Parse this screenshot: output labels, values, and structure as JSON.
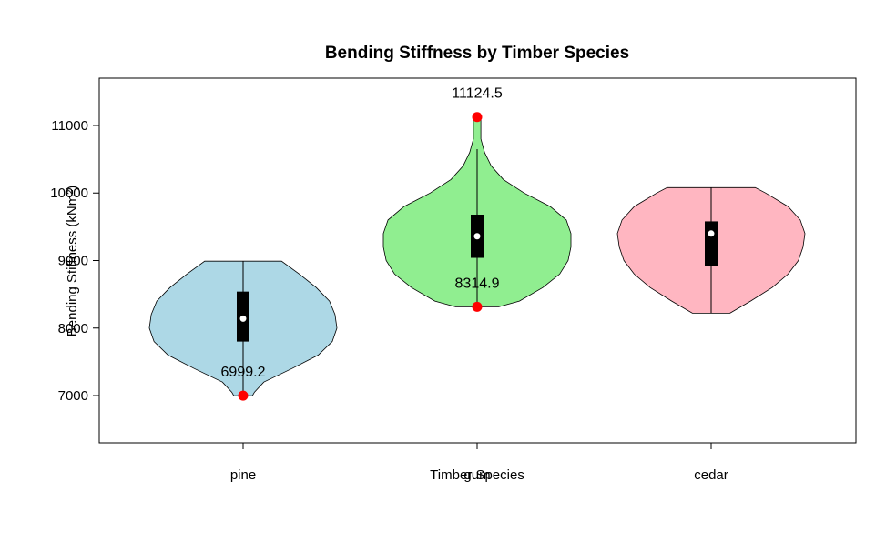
{
  "chart_data": {
    "type": "violin",
    "title": "Bending Stiffness by Timber Species",
    "xlabel": "Timber Species",
    "ylabel": "Bending Stiffness (kNm²)",
    "ylim": [
      6300,
      11700
    ],
    "yticks": [
      7000,
      8000,
      9000,
      10000,
      11000
    ],
    "categories": [
      "pine",
      "gum",
      "cedar"
    ],
    "colors": [
      "#add8e6",
      "#90ee90",
      "#ffb6c1"
    ],
    "min_marker_color": "#ff0000",
    "violins": [
      {
        "name": "pine",
        "min": 6999.2,
        "max": 8990,
        "q1": 7800,
        "median": 8140,
        "q3": 8540,
        "whisker_low": 7000,
        "whisker_high": 8990,
        "density_profile": [
          [
            6999.2,
            0.1
          ],
          [
            7050,
            0.12
          ],
          [
            7200,
            0.22
          ],
          [
            7400,
            0.52
          ],
          [
            7600,
            0.8
          ],
          [
            7800,
            0.95
          ],
          [
            8000,
            1.0
          ],
          [
            8200,
            0.98
          ],
          [
            8400,
            0.92
          ],
          [
            8600,
            0.78
          ],
          [
            8800,
            0.6
          ],
          [
            8990,
            0.41
          ]
        ],
        "labeled_points": [
          {
            "label": "6999.2",
            "value": 6999.2
          }
        ]
      },
      {
        "name": "gum",
        "min": 8314.9,
        "max": 11124.5,
        "q1": 9040,
        "median": 9360,
        "q3": 9680,
        "whisker_low": 8314.9,
        "whisker_high": 10650,
        "density_profile": [
          [
            8314.9,
            0.23
          ],
          [
            8400,
            0.45
          ],
          [
            8600,
            0.7
          ],
          [
            8800,
            0.88
          ],
          [
            9000,
            0.97
          ],
          [
            9200,
            1.0
          ],
          [
            9400,
            1.0
          ],
          [
            9600,
            0.95
          ],
          [
            9800,
            0.78
          ],
          [
            10000,
            0.5
          ],
          [
            10200,
            0.28
          ],
          [
            10400,
            0.15
          ],
          [
            10600,
            0.08
          ],
          [
            10800,
            0.04
          ],
          [
            11000,
            0.04
          ],
          [
            11124.5,
            0.04
          ]
        ],
        "labeled_points": [
          {
            "label": "8314.9",
            "value": 8314.9
          },
          {
            "label": "11124.5",
            "value": 11124.5
          }
        ]
      },
      {
        "name": "cedar",
        "min": 8220,
        "max": 10080,
        "q1": 8920,
        "median": 9400,
        "q3": 9580,
        "whisker_low": 8220,
        "whisker_high": 10080,
        "density_profile": [
          [
            8220,
            0.2
          ],
          [
            8400,
            0.42
          ],
          [
            8600,
            0.65
          ],
          [
            8800,
            0.82
          ],
          [
            9000,
            0.93
          ],
          [
            9200,
            0.98
          ],
          [
            9400,
            1.0
          ],
          [
            9600,
            0.95
          ],
          [
            9800,
            0.82
          ],
          [
            10000,
            0.58
          ],
          [
            10080,
            0.47
          ]
        ],
        "labeled_points": []
      }
    ]
  }
}
